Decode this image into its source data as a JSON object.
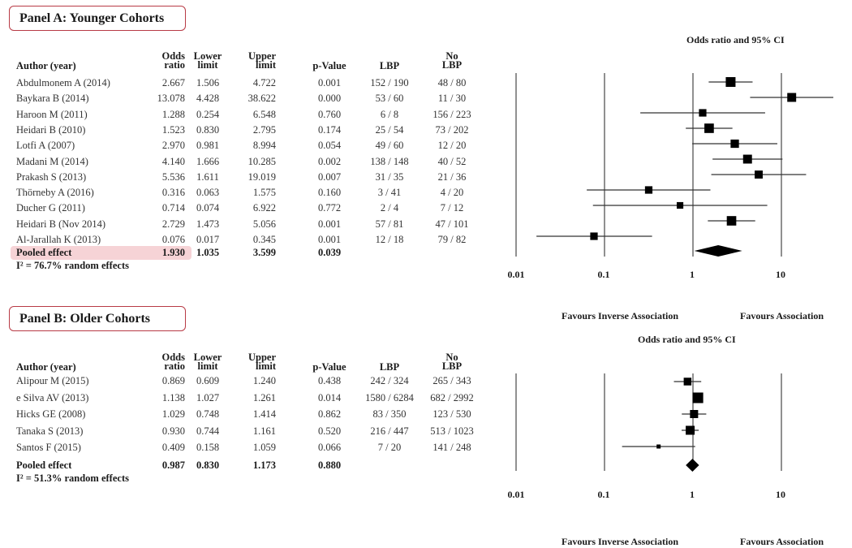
{
  "panels": [
    {
      "title": "Panel A: Younger Cohorts",
      "headers": {
        "author": "Author (year)",
        "odds_ratio": [
          "Odds",
          "ratio"
        ],
        "lower": [
          "Lower",
          "limit"
        ],
        "upper": [
          "Upper",
          "limit"
        ],
        "p_value": "p-Value",
        "lbp": "LBP",
        "no_lbp": [
          "No",
          "LBP"
        ]
      },
      "rows": [
        {
          "author": "Abdulmonem A (2014)",
          "or": "2.667",
          "lower": "1.506",
          "upper": "4.722",
          "p": "0.001",
          "lbp": "152 / 190",
          "no_lbp": "48 / 80"
        },
        {
          "author": "Baykara B (2014)",
          "or": "13.078",
          "lower": "4.428",
          "upper": "38.622",
          "p": "0.000",
          "lbp": "53 / 60",
          "no_lbp": "11 / 30"
        },
        {
          "author": "Haroon M (2011)",
          "or": "1.288",
          "lower": "0.254",
          "upper": "6.548",
          "p": "0.760",
          "lbp": "6 / 8",
          "no_lbp": "156 / 223"
        },
        {
          "author": "Heidari B (2010)",
          "or": "1.523",
          "lower": "0.830",
          "upper": "2.795",
          "p": "0.174",
          "lbp": "25 / 54",
          "no_lbp": "73 / 202"
        },
        {
          "author": "Lotfi A (2007)",
          "or": "2.970",
          "lower": "0.981",
          "upper": "8.994",
          "p": "0.054",
          "lbp": "49 / 60",
          "no_lbp": "12 / 20"
        },
        {
          "author": "Madani M (2014)",
          "or": "4.140",
          "lower": "1.666",
          "upper": "10.285",
          "p": "0.002",
          "lbp": "138 / 148",
          "no_lbp": "40 / 52"
        },
        {
          "author": "Prakash S (2013)",
          "or": "5.536",
          "lower": "1.611",
          "upper": "19.019",
          "p": "0.007",
          "lbp": "31 / 35",
          "no_lbp": "21 / 36"
        },
        {
          "author": "Thörneby A (2016)",
          "or": "0.316",
          "lower": "0.063",
          "upper": "1.575",
          "p": "0.160",
          "lbp": "3 / 41",
          "no_lbp": "4 / 20"
        },
        {
          "author": "Ducher G (2011)",
          "or": "0.714",
          "lower": "0.074",
          "upper": "6.922",
          "p": "0.772",
          "lbp": "2 / 4",
          "no_lbp": "7 / 12"
        },
        {
          "author": "Heidari B (Nov 2014)",
          "or": "2.729",
          "lower": "1.473",
          "upper": "5.056",
          "p": "0.001",
          "lbp": "57 / 81",
          "no_lbp": "47 / 101"
        },
        {
          "author": "Al-Jarallah K (2013)",
          "or": "0.076",
          "lower": "0.017",
          "upper": "0.345",
          "p": "0.001",
          "lbp": "12 / 18",
          "no_lbp": "79 / 82"
        }
      ],
      "pooled": {
        "author": "Pooled effect",
        "or": "1.930",
        "lower": "1.035",
        "upper": "3.599",
        "p": "0.039"
      },
      "heterogeneity": "I² = 76.7% random effects"
    },
    {
      "title": "Panel B: Older Cohorts",
      "headers": {
        "author": "Author (year)",
        "odds_ratio": [
          "Odds",
          "ratio"
        ],
        "lower": [
          "Lower",
          "limit"
        ],
        "upper": [
          "Upper",
          "limit"
        ],
        "p_value": "p-Value",
        "lbp": "LBP",
        "no_lbp": [
          "No",
          "LBP"
        ]
      },
      "rows": [
        {
          "author": "Alipour M (2015)",
          "or": "0.869",
          "lower": "0.609",
          "upper": "1.240",
          "p": "0.438",
          "lbp": "242 / 324",
          "no_lbp": "265 / 343"
        },
        {
          "author": "e Silva AV (2013)",
          "or": "1.138",
          "lower": "1.027",
          "upper": "1.261",
          "p": "0.014",
          "lbp": "1580 / 6284",
          "no_lbp": "682 / 2992"
        },
        {
          "author": "Hicks GE (2008)",
          "or": "1.029",
          "lower": "0.748",
          "upper": "1.414",
          "p": "0.862",
          "lbp": "83 / 350",
          "no_lbp": "123 / 530"
        },
        {
          "author": "Tanaka S (2013)",
          "or": "0.930",
          "lower": "0.744",
          "upper": "1.161",
          "p": "0.520",
          "lbp": "216 / 447",
          "no_lbp": "513 / 1023"
        },
        {
          "author": "Santos F (2015)",
          "or": "0.409",
          "lower": "0.158",
          "upper": "1.059",
          "p": "0.066",
          "lbp": "7 / 20",
          "no_lbp": "141 / 248"
        }
      ],
      "pooled": {
        "author": "Pooled effect",
        "or": "0.987",
        "lower": "0.830",
        "upper": "1.173",
        "p": "0.880"
      },
      "heterogeneity": "I² = 51.3% random effects"
    }
  ],
  "colors": {
    "panel_border": "#b83a45",
    "pooled_highlight": "#f6d3d6",
    "marker": "#000000"
  },
  "chart_data": [
    {
      "type": "forest",
      "title": "Odds ratio and 95% CI",
      "xscale": "log",
      "xlim": [
        0.01,
        100
      ],
      "xticks": [
        "0.01",
        "0.1",
        "1",
        "10"
      ],
      "xtick_values": [
        0.01,
        0.1,
        1,
        10
      ],
      "left_label": "Favours Inverse Association",
      "right_label": "Favours Association",
      "studies": [
        {
          "or": 2.667,
          "lower": 1.506,
          "upper": 4.722,
          "weight": 1.0
        },
        {
          "or": 13.078,
          "lower": 4.428,
          "upper": 38.622,
          "weight": 0.85
        },
        {
          "or": 1.288,
          "lower": 0.254,
          "upper": 6.548,
          "weight": 0.6
        },
        {
          "or": 1.523,
          "lower": 0.83,
          "upper": 2.795,
          "weight": 0.95
        },
        {
          "or": 2.97,
          "lower": 0.981,
          "upper": 8.994,
          "weight": 0.75
        },
        {
          "or": 4.14,
          "lower": 1.666,
          "upper": 10.285,
          "weight": 0.85
        },
        {
          "or": 5.536,
          "lower": 1.611,
          "upper": 19.019,
          "weight": 0.7
        },
        {
          "or": 0.316,
          "lower": 0.063,
          "upper": 1.575,
          "weight": 0.6
        },
        {
          "or": 0.714,
          "lower": 0.074,
          "upper": 6.922,
          "weight": 0.45
        },
        {
          "or": 2.729,
          "lower": 1.473,
          "upper": 5.056,
          "weight": 0.95
        },
        {
          "or": 0.076,
          "lower": 0.017,
          "upper": 0.345,
          "weight": 0.6
        }
      ],
      "pooled": {
        "or": 1.93,
        "lower": 1.035,
        "upper": 3.599
      }
    },
    {
      "type": "forest",
      "title": "Odds ratio and 95% CI",
      "xscale": "log",
      "xlim": [
        0.01,
        100
      ],
      "xticks": [
        "0.01",
        "0.1",
        "1",
        "10"
      ],
      "xtick_values": [
        0.01,
        0.1,
        1,
        10
      ],
      "left_label": "Favours Inverse Association",
      "right_label": "Favours Association",
      "studies": [
        {
          "or": 0.869,
          "lower": 0.609,
          "upper": 1.24,
          "weight": 0.65
        },
        {
          "or": 1.138,
          "lower": 1.027,
          "upper": 1.261,
          "weight": 1.0
        },
        {
          "or": 1.029,
          "lower": 0.748,
          "upper": 1.414,
          "weight": 0.7
        },
        {
          "or": 0.93,
          "lower": 0.744,
          "upper": 1.161,
          "weight": 0.8
        },
        {
          "or": 0.409,
          "lower": 0.158,
          "upper": 1.059,
          "weight": 0.2
        }
      ],
      "pooled": {
        "or": 0.987,
        "lower": 0.83,
        "upper": 1.173
      }
    }
  ]
}
